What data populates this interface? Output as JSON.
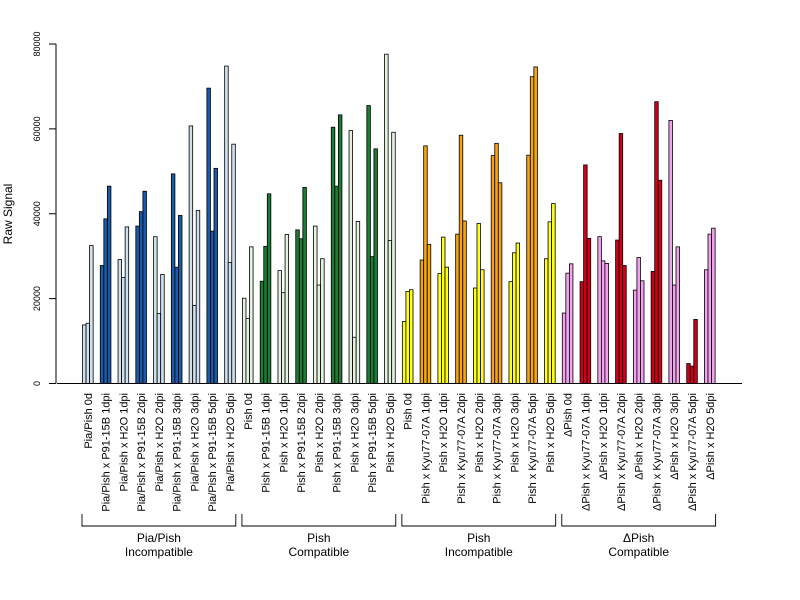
{
  "chart_data": {
    "type": "bar",
    "title": "",
    "xlabel": "",
    "ylabel": "Raw Signal",
    "ylim": [
      0,
      80000
    ],
    "yticks": [
      0,
      20000,
      40000,
      60000,
      80000
    ],
    "grid": false,
    "colors": {
      "light_blue": "#cfe0ef",
      "dark_blue": "#1b5aa5",
      "light_green": "#e4f2e0",
      "dark_green": "#1e7a34",
      "yellow": "#ffff1a",
      "orange": "#f5a512",
      "pink": "#f2a2ee",
      "red": "#d0001a"
    },
    "categories": [
      "Pia/Pish 0d",
      "Pia/Pish x P91-15B 1dpi",
      "Pia/Pish x H2O 1dpi",
      "Pia/Pish x P91-15B 2dpi",
      "Pia/Pish x H2O 2dpi",
      "Pia/Pish x P91-15B 3dpi",
      "Pia/Pish x H2O 3dpi",
      "Pia/Pish x P91-15B 5dpi",
      "Pia/Pish x H2O 5dpi",
      "Pish 0d",
      "Pish x P91-15B 1dpi",
      "Pish x H2O 1dpi",
      "Pish x P91-15B 2dpi",
      "Pish x H2O 2dpi",
      "Pish x P91-15B 3dpi",
      "Pish x H2O 3dpi",
      "Pish x P91-15B 5dpi",
      "Pish x H2O 5dpi",
      "Pish 0d",
      "Pish x Kyu77-07A 1dpi",
      "Pish x H2O 1dpi",
      "Pish x Kyu77-07A 2dpi",
      "Pish x H2O 2dpi",
      "Pish x Kyu77-07A 3dpi",
      "Pish x H2O 3dpi",
      "Pish x Kyu77-07A 5dpi",
      "Pish x H2O 5dpi",
      "ΔPish 0d",
      "ΔPish x Kyu77-07A 1dpi",
      "ΔPish x H2O 1dpi",
      "ΔPish x Kyu77-07A 2dpi",
      "ΔPish x H2O 2dpi",
      "ΔPish x Kyu77-07A 3dpi",
      "ΔPish x H2O 3dpi",
      "ΔPish x Kyu77-07A 5dpi",
      "ΔPish x H2O 5dpi"
    ],
    "category_colors": [
      "light_blue",
      "dark_blue",
      "light_blue",
      "dark_blue",
      "light_blue",
      "dark_blue",
      "light_blue",
      "dark_blue",
      "light_blue",
      "light_green",
      "dark_green",
      "light_green",
      "dark_green",
      "light_green",
      "dark_green",
      "light_green",
      "dark_green",
      "light_green",
      "yellow",
      "orange",
      "yellow",
      "orange",
      "yellow",
      "orange",
      "yellow",
      "orange",
      "yellow",
      "pink",
      "red",
      "pink",
      "red",
      "pink",
      "red",
      "pink",
      "red",
      "pink"
    ],
    "values": [
      [
        13800,
        14200,
        32500
      ],
      [
        27800,
        38800,
        46500
      ],
      [
        29200,
        25000,
        36900
      ],
      [
        37100,
        40500,
        45300
      ],
      [
        34600,
        16500,
        25700
      ],
      [
        49400,
        27400,
        39600
      ],
      [
        60700,
        18400,
        40800
      ],
      [
        69600,
        35900,
        50700
      ],
      [
        74800,
        28500,
        56400
      ],
      [
        20100,
        15300,
        32200
      ],
      [
        24100,
        32300,
        44700
      ],
      [
        26600,
        21400,
        35100
      ],
      [
        36200,
        34100,
        46200
      ],
      [
        37100,
        23200,
        29400
      ],
      [
        60400,
        46500,
        63300
      ],
      [
        59600,
        10900,
        38200
      ],
      [
        65500,
        29900,
        55300
      ],
      [
        77600,
        33700,
        59200
      ],
      [
        14600,
        21700,
        22100
      ],
      [
        29100,
        56000,
        32800
      ],
      [
        25900,
        34500,
        27400
      ],
      [
        35200,
        58500,
        38300
      ],
      [
        22500,
        37700,
        26800
      ],
      [
        53700,
        56600,
        47300
      ],
      [
        24000,
        30800,
        33100
      ],
      [
        53800,
        72300,
        74600
      ],
      [
        29400,
        38100,
        42400
      ],
      [
        16600,
        26000,
        28200
      ],
      [
        24000,
        51500,
        34200
      ],
      [
        34600,
        28900,
        28300
      ],
      [
        33800,
        58900,
        27800
      ],
      [
        22000,
        29700,
        24200
      ],
      [
        26400,
        66400,
        47900
      ],
      [
        62000,
        23200,
        32200
      ],
      [
        4700,
        4100,
        15100
      ],
      [
        26800,
        35200,
        36600
      ]
    ],
    "groups": [
      {
        "line1": "Pia/Pish",
        "line2": "Incompatible",
        "start": 0,
        "end": 8
      },
      {
        "line1": "Pish",
        "line2": "Compatible",
        "start": 9,
        "end": 17
      },
      {
        "line1": "Pish",
        "line2": "Incompatible",
        "start": 18,
        "end": 26
      },
      {
        "line1": "ΔPish",
        "line2": "Compatible",
        "start": 27,
        "end": 35
      }
    ]
  }
}
